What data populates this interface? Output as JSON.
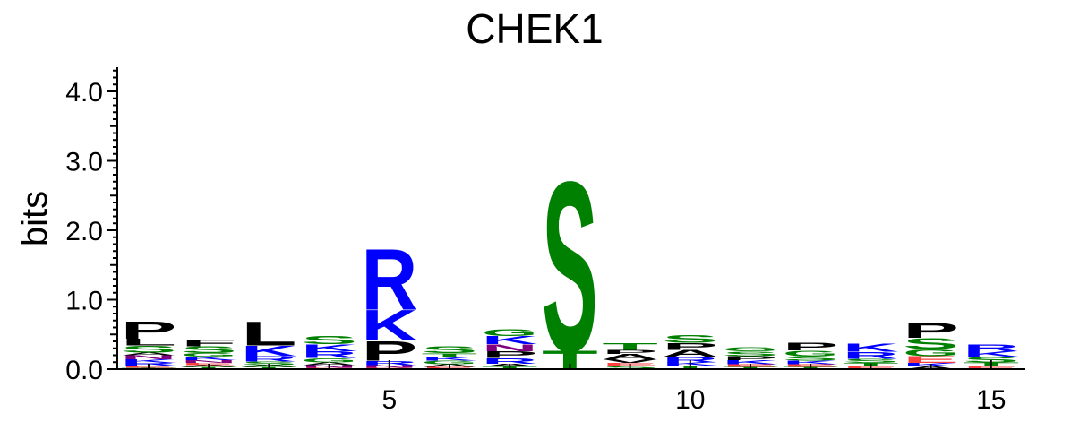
{
  "chart_data": {
    "type": "sequence-logo",
    "title": "CHEK1",
    "ylabel": "bits",
    "xlabel": "",
    "ylim": [
      0,
      4.3
    ],
    "y_ticks": [
      "0.0",
      "1.0",
      "2.0",
      "3.0",
      "4.0"
    ],
    "x_ticks": [
      {
        "position": 5,
        "label": "5"
      },
      {
        "position": 10,
        "label": "10"
      },
      {
        "position": 15,
        "label": "15"
      }
    ],
    "colors": {
      "green": "#008000",
      "blue": "#0000ff",
      "black": "#000000",
      "purple": "#800080",
      "red": "#ff4040"
    },
    "positions": [
      {
        "pos": 1,
        "letters": [
          [
            "T",
            0.02,
            "green"
          ],
          [
            "E",
            0.03,
            "red"
          ],
          [
            "R",
            0.04,
            "blue"
          ],
          [
            "K",
            0.05,
            "blue"
          ],
          [
            "N",
            0.06,
            "purple"
          ],
          [
            "A",
            0.04,
            "black"
          ],
          [
            "S",
            0.1,
            "green"
          ],
          [
            "L",
            0.1,
            "black"
          ],
          [
            "P",
            0.26,
            "black"
          ]
        ]
      },
      {
        "pos": 2,
        "letters": [
          [
            "T",
            0.03,
            "green"
          ],
          [
            "A",
            0.03,
            "black"
          ],
          [
            "E",
            0.03,
            "red"
          ],
          [
            "N",
            0.04,
            "purple"
          ],
          [
            "K",
            0.05,
            "blue"
          ],
          [
            "G",
            0.05,
            "green"
          ],
          [
            "S",
            0.1,
            "green"
          ],
          [
            "F",
            0.1,
            "black"
          ]
        ]
      },
      {
        "pos": 3,
        "letters": [
          [
            "T",
            0.03,
            "green"
          ],
          [
            "A",
            0.03,
            "black"
          ],
          [
            "S",
            0.05,
            "green"
          ],
          [
            "R",
            0.08,
            "blue"
          ],
          [
            "K",
            0.15,
            "blue"
          ],
          [
            "L",
            0.35,
            "black"
          ]
        ]
      },
      {
        "pos": 4,
        "letters": [
          [
            "E",
            0.02,
            "red"
          ],
          [
            "N",
            0.04,
            "purple"
          ],
          [
            "A",
            0.04,
            "black"
          ],
          [
            "G",
            0.06,
            "green"
          ],
          [
            "R",
            0.1,
            "blue"
          ],
          [
            "K",
            0.1,
            "blue"
          ],
          [
            "S",
            0.12,
            "green"
          ]
        ]
      },
      {
        "pos": 5,
        "letters": [
          [
            "D",
            0.02,
            "red"
          ],
          [
            "N",
            0.04,
            "purple"
          ],
          [
            "R",
            0.06,
            "blue"
          ],
          [
            "P",
            0.29,
            "black"
          ],
          [
            "K",
            0.45,
            "blue"
          ],
          [
            "R",
            0.9,
            "blue"
          ]
        ]
      },
      {
        "pos": 6,
        "letters": [
          [
            "E",
            0.03,
            "red"
          ],
          [
            "A",
            0.04,
            "black"
          ],
          [
            "G",
            0.05,
            "green"
          ],
          [
            "K",
            0.05,
            "blue"
          ],
          [
            "T",
            0.06,
            "green"
          ],
          [
            "S",
            0.1,
            "green"
          ]
        ]
      },
      {
        "pos": 7,
        "letters": [
          [
            "T",
            0.04,
            "green"
          ],
          [
            "A",
            0.04,
            "black"
          ],
          [
            "R",
            0.08,
            "blue"
          ],
          [
            "P",
            0.1,
            "black"
          ],
          [
            "N",
            0.1,
            "purple"
          ],
          [
            "K",
            0.12,
            "blue"
          ],
          [
            "G",
            0.1,
            "green"
          ]
        ]
      },
      {
        "pos": 8,
        "letters": [
          [
            "T",
            0.27,
            "green"
          ],
          [
            "S",
            2.5,
            "green"
          ]
        ]
      },
      {
        "pos": 9,
        "letters": [
          [
            "S",
            0.05,
            "green"
          ],
          [
            "E",
            0.04,
            "red"
          ],
          [
            "V",
            0.05,
            "black"
          ],
          [
            "A",
            0.08,
            "black"
          ],
          [
            "P",
            0.06,
            "black"
          ],
          [
            "T",
            0.1,
            "green"
          ]
        ]
      },
      {
        "pos": 10,
        "letters": [
          [
            "T",
            0.05,
            "green"
          ],
          [
            "K",
            0.05,
            "blue"
          ],
          [
            "R",
            0.08,
            "blue"
          ],
          [
            "A",
            0.1,
            "black"
          ],
          [
            "P",
            0.1,
            "black"
          ],
          [
            "S",
            0.11,
            "green"
          ]
        ]
      },
      {
        "pos": 11,
        "letters": [
          [
            "T",
            0.03,
            "green"
          ],
          [
            "E",
            0.04,
            "red"
          ],
          [
            "K",
            0.06,
            "blue"
          ],
          [
            "P",
            0.06,
            "black"
          ],
          [
            "S",
            0.07,
            "green"
          ],
          [
            "G",
            0.06,
            "green"
          ]
        ]
      },
      {
        "pos": 12,
        "letters": [
          [
            "T",
            0.03,
            "green"
          ],
          [
            "E",
            0.04,
            "red"
          ],
          [
            "K",
            0.05,
            "blue"
          ],
          [
            "S",
            0.07,
            "green"
          ],
          [
            "G",
            0.08,
            "green"
          ],
          [
            "P",
            0.11,
            "black"
          ]
        ]
      },
      {
        "pos": 13,
        "letters": [
          [
            "E",
            0.04,
            "red"
          ],
          [
            "T",
            0.05,
            "green"
          ],
          [
            "S",
            0.06,
            "green"
          ],
          [
            "R",
            0.1,
            "blue"
          ],
          [
            "K",
            0.12,
            "blue"
          ]
        ]
      },
      {
        "pos": 14,
        "letters": [
          [
            "A",
            0.04,
            "black"
          ],
          [
            "K",
            0.05,
            "blue"
          ],
          [
            "E",
            0.1,
            "red"
          ],
          [
            "G",
            0.1,
            "green"
          ],
          [
            "S",
            0.16,
            "green"
          ],
          [
            "P",
            0.22,
            "black"
          ]
        ]
      },
      {
        "pos": 15,
        "letters": [
          [
            "E",
            0.04,
            "red"
          ],
          [
            "T",
            0.06,
            "green"
          ],
          [
            "S",
            0.08,
            "green"
          ],
          [
            "K",
            0.08,
            "blue"
          ],
          [
            "R",
            0.1,
            "blue"
          ]
        ]
      }
    ]
  }
}
